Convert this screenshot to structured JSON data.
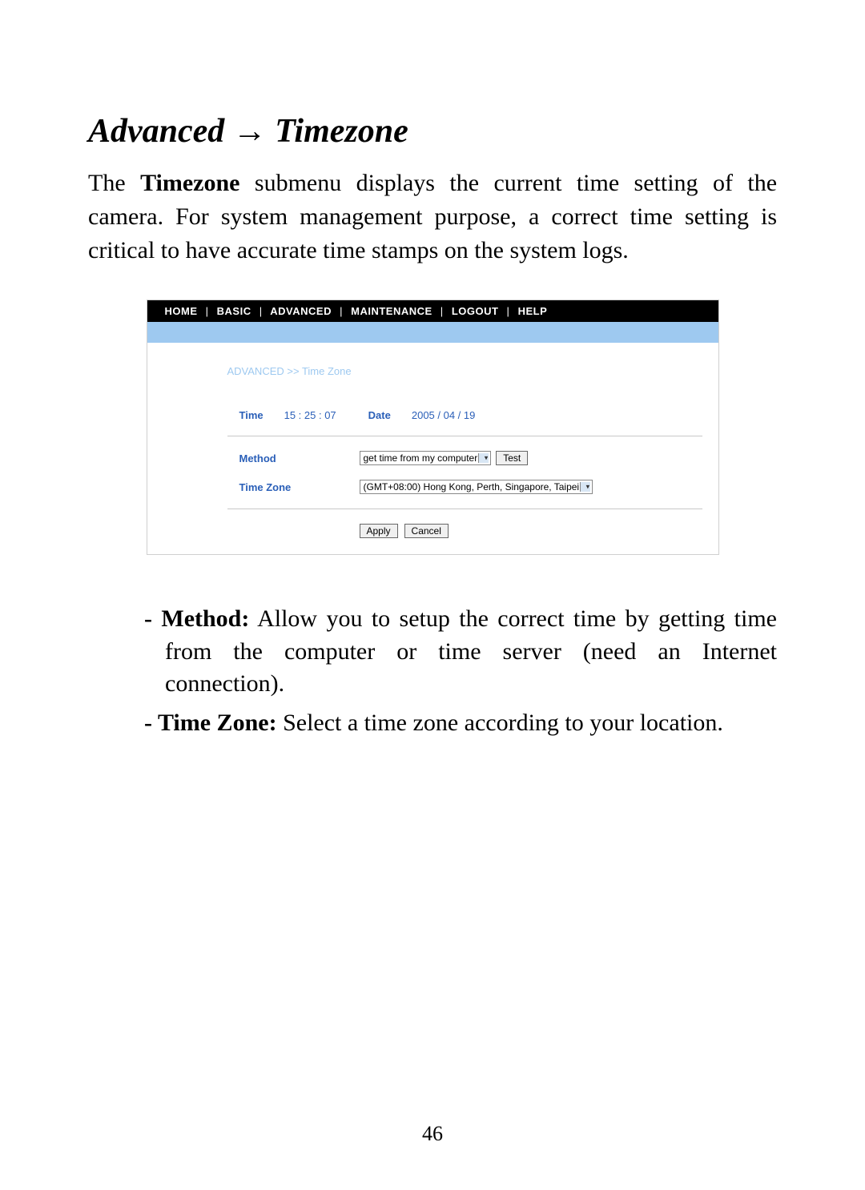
{
  "title": {
    "part1": "Advanced ",
    "arrow": "→",
    "part2": " Timezone"
  },
  "intro": {
    "prefix": "The ",
    "bold": "Timezone",
    "rest": " submenu displays the current time setting of the camera.  For system management purpose, a correct time setting is critical to have accurate time stamps on the system logs."
  },
  "nav": {
    "items": [
      "HOME",
      "BASIC",
      "ADVANCED",
      "MAINTENANCE",
      "LOGOUT",
      "HELP"
    ]
  },
  "colors": {
    "nav_bg": "#000000",
    "nav_text": "#ffffff",
    "blue_bar": "#9ec9f0",
    "breadcrumb": "#9ec9f0",
    "label": "#2a5fb8",
    "border": "#c8c8c8"
  },
  "breadcrumb": "ADVANCED >> Time Zone",
  "time": {
    "label": "Time",
    "value": "15   : 25   : 07"
  },
  "date": {
    "label": "Date",
    "value": "2005   / 04   / 19"
  },
  "method": {
    "label": "Method",
    "select": "get time from my computer",
    "test_btn": "Test"
  },
  "timezone": {
    "label": "Time Zone",
    "select": "(GMT+08:00) Hong Kong, Perth, Singapore, Taipei"
  },
  "buttons": {
    "apply": "Apply",
    "cancel": "Cancel"
  },
  "bullets": {
    "b1": {
      "label": "Method:",
      "text": " Allow you to setup the correct time by getting time from the computer or time server (need an Internet connection)."
    },
    "b2": {
      "label": "Time Zone:",
      "text": " Select a time zone according to your location."
    }
  },
  "pagenum": "46"
}
